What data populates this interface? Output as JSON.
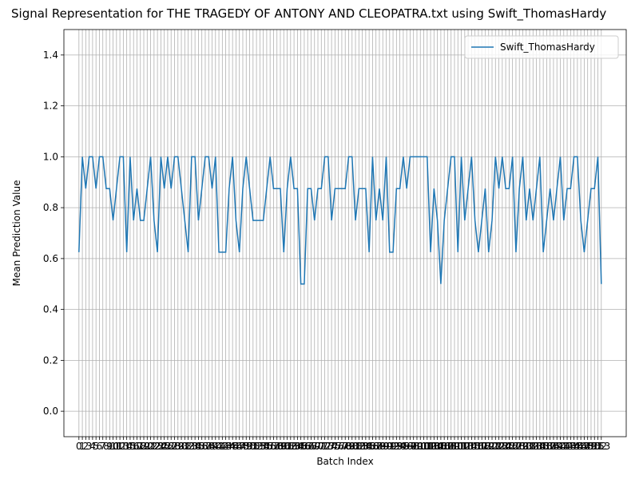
{
  "chart_data": {
    "type": "line",
    "title": "Signal Representation for THE TRAGEDY OF ANTONY AND CLEOPATRA.txt using Swift_ThomasHardy",
    "xlabel": "Batch Index",
    "ylabel": "Mean Prediction Value",
    "x": [
      0,
      1,
      2,
      3,
      4,
      5,
      6,
      7,
      8,
      9,
      10,
      11,
      12,
      13,
      14,
      15,
      16,
      17,
      18,
      19,
      20,
      21,
      22,
      23,
      24,
      25,
      26,
      27,
      28,
      29,
      30,
      31,
      32,
      33,
      34,
      35,
      36,
      37,
      38,
      39,
      40,
      41,
      42,
      43,
      44,
      45,
      46,
      47,
      48,
      49,
      50,
      51,
      52,
      53,
      54,
      55,
      56,
      57,
      58,
      59,
      60,
      61,
      62,
      63,
      64,
      65,
      66,
      67,
      68,
      69,
      70,
      71,
      72,
      73,
      74,
      75,
      76,
      77,
      78,
      79,
      80,
      81,
      82,
      83,
      84,
      85,
      86,
      87,
      88,
      89,
      90,
      91,
      92,
      93,
      94,
      95,
      96,
      97,
      98,
      99,
      100,
      101,
      102,
      103,
      104,
      105,
      106,
      107,
      108,
      109,
      110,
      111,
      112,
      113,
      114,
      115,
      116,
      117,
      118,
      119,
      120,
      121,
      122,
      123,
      124,
      125,
      126,
      127,
      128,
      129,
      130,
      131,
      132,
      133,
      134,
      135,
      136,
      137,
      138,
      139,
      140,
      141,
      142,
      143,
      144,
      145,
      146,
      147,
      148,
      149,
      150,
      151,
      152,
      153
    ],
    "series": [
      {
        "name": "Swift_ThomasHardy",
        "color": "#1f77b4",
        "values": [
          0.625,
          1,
          0.875,
          1,
          1,
          0.875,
          1,
          1,
          0.875,
          0.875,
          0.75,
          0.875,
          1,
          1,
          0.625,
          1,
          0.75,
          0.875,
          0.75,
          0.75,
          0.875,
          1,
          0.75,
          0.625,
          1,
          0.875,
          1,
          0.875,
          1,
          1,
          0.875,
          0.75,
          0.625,
          1,
          1,
          0.75,
          0.875,
          1,
          1,
          0.875,
          1,
          0.625,
          0.625,
          0.625,
          0.875,
          1,
          0.75,
          0.625,
          0.875,
          1,
          0.875,
          0.75,
          0.75,
          0.75,
          0.75,
          0.875,
          1,
          0.875,
          0.875,
          0.875,
          0.625,
          0.875,
          1,
          0.875,
          0.875,
          0.5,
          0.5,
          0.875,
          0.875,
          0.75,
          0.875,
          0.875,
          1,
          1,
          0.75,
          0.875,
          0.875,
          0.875,
          0.875,
          1,
          1,
          0.75,
          0.875,
          0.875,
          0.875,
          0.625,
          1,
          0.75,
          0.875,
          0.75,
          1,
          0.625,
          0.625,
          0.875,
          0.875,
          1,
          0.875,
          1,
          1,
          1,
          1,
          1,
          1,
          0.625,
          0.875,
          0.75,
          0.5,
          0.75,
          0.875,
          1,
          1,
          0.625,
          1,
          0.75,
          0.875,
          1,
          0.75,
          0.625,
          0.75,
          0.875,
          0.625,
          0.75,
          1,
          0.875,
          1,
          0.875,
          0.875,
          1,
          0.625,
          0.875,
          1,
          0.75,
          0.875,
          0.75,
          0.875,
          1,
          0.625,
          0.75,
          0.875,
          0.75,
          0.875,
          1,
          0.75,
          0.875,
          0.875,
          1,
          1,
          0.75,
          0.625,
          0.75,
          0.875,
          0.875,
          1,
          0.5
        ]
      }
    ],
    "xlim": [
      -4.4,
      160.3
    ],
    "xticks": [
      0,
      1,
      2,
      3,
      4,
      5,
      6,
      7,
      8,
      9,
      10,
      11,
      12,
      13,
      14,
      15,
      16,
      17,
      18,
      19,
      20,
      21,
      22,
      23,
      24,
      25,
      26,
      27,
      28,
      29,
      30,
      31,
      32,
      33,
      34,
      35,
      36,
      37,
      38,
      39,
      40,
      41,
      42,
      43,
      44,
      45,
      46,
      47,
      48,
      49,
      50,
      51,
      52,
      53,
      54,
      55,
      56,
      57,
      58,
      59,
      60,
      61,
      62,
      63,
      64,
      65,
      66,
      67,
      68,
      69,
      70,
      71,
      72,
      73,
      74,
      75,
      76,
      77,
      78,
      79,
      80,
      81,
      82,
      83,
      84,
      85,
      86,
      87,
      88,
      89,
      90,
      91,
      92,
      93,
      94,
      95,
      96,
      97,
      98,
      99,
      100,
      101,
      102,
      103,
      104,
      105,
      106,
      107,
      108,
      109,
      110,
      111,
      112,
      113,
      114,
      115,
      116,
      117,
      118,
      119,
      120,
      121,
      122,
      123,
      124,
      125,
      126,
      127,
      128,
      129,
      130,
      131,
      132,
      133,
      134,
      135,
      136,
      137,
      138,
      139,
      140,
      141,
      142,
      143,
      144,
      145,
      146,
      147,
      148,
      149,
      150,
      151,
      152,
      153
    ],
    "ylim": [
      -0.1,
      1.5
    ],
    "yticks": [
      {
        "value": 0,
        "label": "0.0"
      },
      {
        "value": 0.2,
        "label": "0.2"
      },
      {
        "value": 0.4,
        "label": "0.4"
      },
      {
        "value": 0.6,
        "label": "0.6"
      },
      {
        "value": 0.8,
        "label": "0.8"
      },
      {
        "value": 1,
        "label": "1.0"
      },
      {
        "value": 1.2,
        "label": "1.2"
      },
      {
        "value": 1.4,
        "label": "1.4"
      }
    ],
    "grid": true,
    "legend": "upper right"
  }
}
